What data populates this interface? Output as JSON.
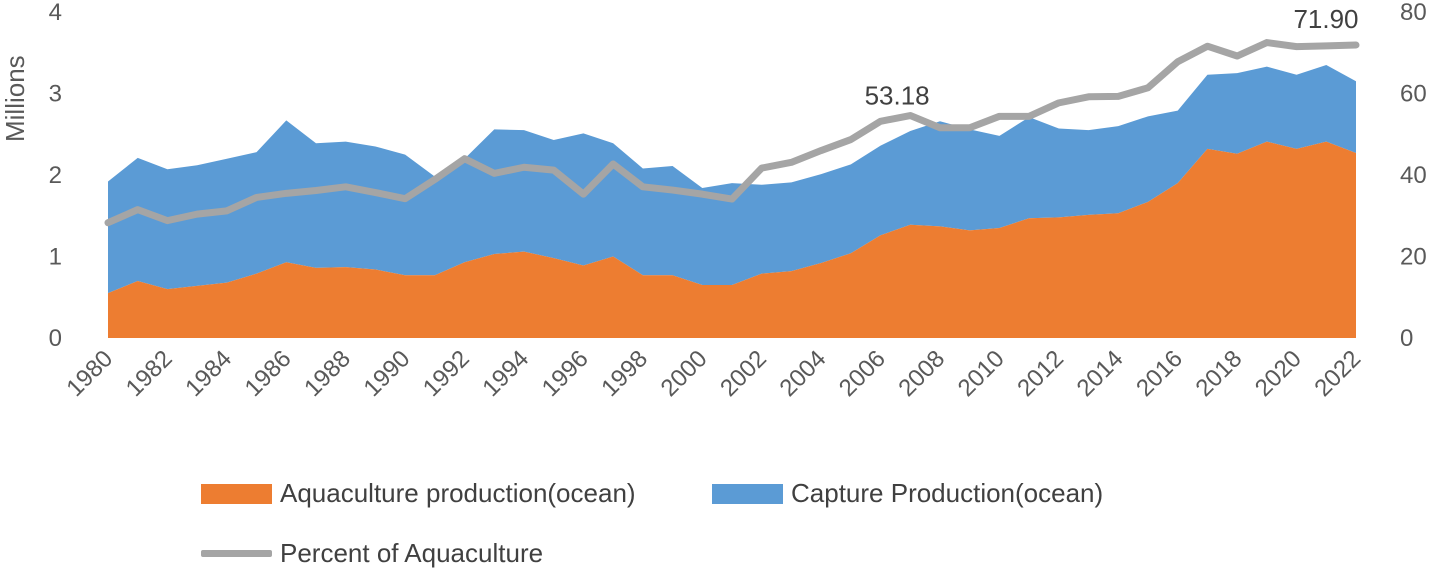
{
  "chart_data": {
    "type": "area",
    "x": [
      1980,
      1981,
      1982,
      1983,
      1984,
      1985,
      1986,
      1987,
      1988,
      1989,
      1990,
      1991,
      1992,
      1993,
      1994,
      1995,
      1996,
      1997,
      1998,
      1999,
      2000,
      2001,
      2002,
      2003,
      2004,
      2005,
      2006,
      2007,
      2008,
      2009,
      2010,
      2011,
      2012,
      2013,
      2014,
      2015,
      2016,
      2017,
      2018,
      2019,
      2020,
      2021,
      2022
    ],
    "x_tick_labels": [
      "1980",
      "1982",
      "1984",
      "1986",
      "1988",
      "1990",
      "1992",
      "1994",
      "1996",
      "1998",
      "2000",
      "2002",
      "2004",
      "2006",
      "2008",
      "2010",
      "2012",
      "2014",
      "2016",
      "2018",
      "2020",
      "2022"
    ],
    "series": [
      {
        "name": "Aquaculture production(ocean)",
        "type": "stacked-area",
        "axis": "left",
        "color": "#ED7D31",
        "values": [
          0.55,
          0.7,
          0.6,
          0.64,
          0.68,
          0.79,
          0.93,
          0.86,
          0.87,
          0.84,
          0.77,
          0.77,
          0.93,
          1.03,
          1.06,
          0.98,
          0.89,
          1.0,
          0.77,
          0.77,
          0.65,
          0.65,
          0.79,
          0.82,
          0.92,
          1.04,
          1.26,
          1.39,
          1.37,
          1.32,
          1.35,
          1.47,
          1.48,
          1.51,
          1.53,
          1.67,
          1.9,
          2.32,
          2.26,
          2.41,
          2.32,
          2.41,
          2.27
        ]
      },
      {
        "name": "Capture Production(ocean)",
        "type": "stacked-area",
        "axis": "left",
        "color": "#5B9BD5",
        "values": [
          1.37,
          1.51,
          1.47,
          1.48,
          1.52,
          1.49,
          1.74,
          1.53,
          1.54,
          1.51,
          1.48,
          1.21,
          1.27,
          1.53,
          1.49,
          1.45,
          1.62,
          1.39,
          1.31,
          1.34,
          1.19,
          1.25,
          1.09,
          1.09,
          1.09,
          1.09,
          1.1,
          1.15,
          1.29,
          1.24,
          1.13,
          1.24,
          1.09,
          1.04,
          1.07,
          1.05,
          0.89,
          0.91,
          0.99,
          0.92,
          0.91,
          0.94,
          0.88
        ]
      },
      {
        "name": "Percent of Aquaculture",
        "type": "line",
        "axis": "right",
        "color": "#A5A5A5",
        "values": [
          28.3,
          31.5,
          28.8,
          30.4,
          31.2,
          34.5,
          35.5,
          36.2,
          37.1,
          35.7,
          34.2,
          38.9,
          44.0,
          40.4,
          41.9,
          41.2,
          35.3,
          42.7,
          37.1,
          36.3,
          35.3,
          34.1,
          41.7,
          43.1,
          46.0,
          48.7,
          53.18,
          54.6,
          51.6,
          51.6,
          54.4,
          54.4,
          57.7,
          59.2,
          59.3,
          61.4,
          67.8,
          71.6,
          69.2,
          72.5,
          71.5,
          71.7,
          71.9
        ]
      }
    ],
    "y_left": {
      "label": "Millions",
      "range": [
        0,
        4
      ],
      "ticks": [
        "0",
        "1",
        "2",
        "3",
        "4"
      ]
    },
    "y_right": {
      "range": [
        0,
        80
      ],
      "ticks": [
        "0",
        "20",
        "40",
        "60",
        "80"
      ]
    },
    "data_labels": [
      {
        "series": "Percent of Aquaculture",
        "x": 2006,
        "text": "53.18"
      },
      {
        "series": "Percent of Aquaculture",
        "x": 2022,
        "text": "71.90"
      }
    ],
    "grid": false,
    "legend_position": "bottom"
  }
}
